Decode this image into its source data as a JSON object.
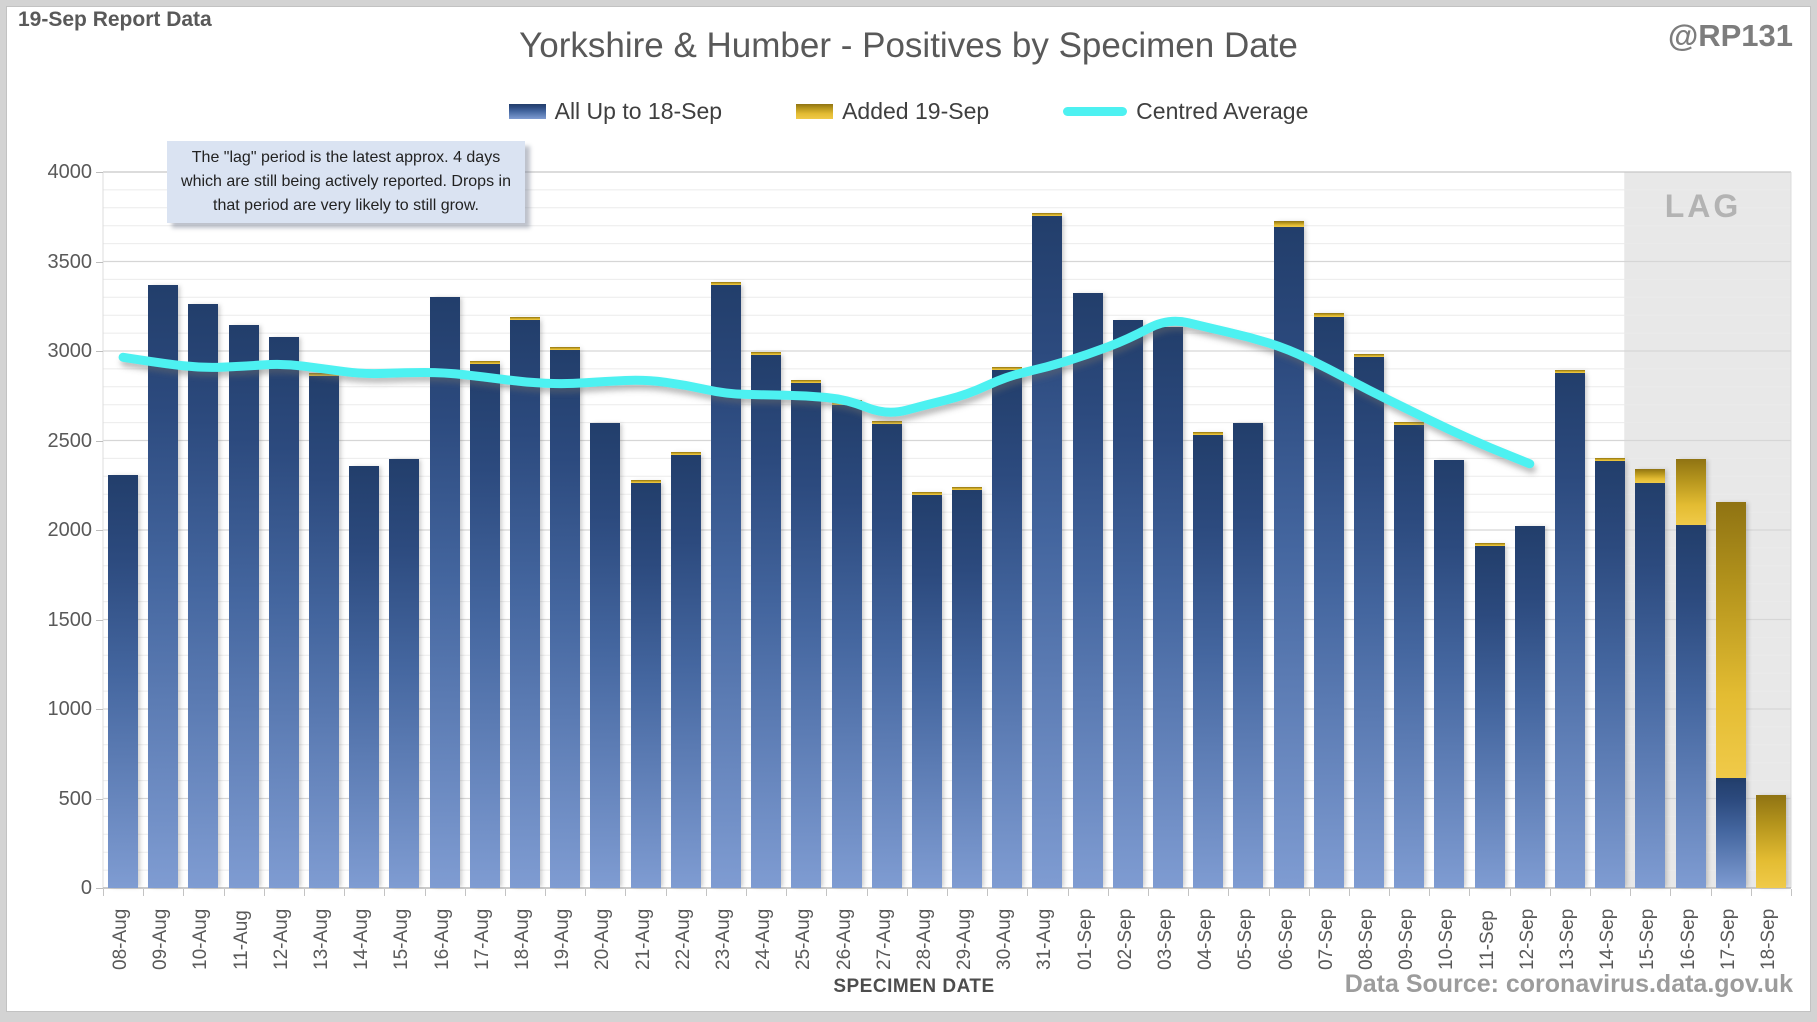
{
  "header": {
    "report_label": "19-Sep Report Data",
    "handle": "@RP131",
    "title": "Yorkshire & Humber - Positives by Specimen Date"
  },
  "legend": {
    "items": [
      {
        "label": "All Up to 18-Sep",
        "swatch": "bar-blue-gradient"
      },
      {
        "label": "Added 19-Sep",
        "swatch": "bar-gold-gradient"
      },
      {
        "label": "Centred Average",
        "swatch": "cyan-line"
      }
    ]
  },
  "annotation": {
    "text": "The \"lag\" period is the latest approx. 4 days which are still being actively reported. Drops in that period are very likely to still grow."
  },
  "lag": {
    "label": "LAG"
  },
  "axes": {
    "x_title": "SPECIMEN DATE",
    "y_ticks": [
      0,
      500,
      1000,
      1500,
      2000,
      2500,
      3000,
      3500,
      4000
    ]
  },
  "footer": {
    "source": "Data Source: coronavirus.data.gov.uk"
  },
  "chart_data": {
    "type": "bar",
    "subtype": "stacked-bars-with-line-overlay",
    "title": "Yorkshire & Humber - Positives by Specimen Date",
    "xlabel": "SPECIMEN DATE",
    "ylabel": "",
    "ylim": [
      0,
      4000
    ],
    "y_major": 500,
    "y_minor": 100,
    "grid": true,
    "legend_position": "top",
    "lag_start_category": "15-Sep",
    "lag_bg": "#e8e8e8",
    "colors": {
      "bar_blue_top": "#223e6b",
      "bar_blue_bottom": "#7f9cd2",
      "bar_gold_top": "#8f7313",
      "bar_gold_bottom": "#f0ca49",
      "line": "#4df1f1"
    },
    "categories": [
      "08-Aug",
      "09-Aug",
      "10-Aug",
      "11-Aug",
      "12-Aug",
      "13-Aug",
      "14-Aug",
      "15-Aug",
      "16-Aug",
      "17-Aug",
      "18-Aug",
      "19-Aug",
      "20-Aug",
      "21-Aug",
      "22-Aug",
      "23-Aug",
      "24-Aug",
      "25-Aug",
      "26-Aug",
      "27-Aug",
      "28-Aug",
      "29-Aug",
      "30-Aug",
      "31-Aug",
      "01-Sep",
      "02-Sep",
      "03-Sep",
      "04-Sep",
      "05-Sep",
      "06-Sep",
      "07-Sep",
      "08-Sep",
      "09-Sep",
      "10-Sep",
      "11-Sep",
      "12-Sep",
      "13-Sep",
      "14-Sep",
      "15-Sep",
      "16-Sep",
      "17-Sep",
      "18-Sep"
    ],
    "series": [
      {
        "name": "All Up to 18-Sep",
        "type": "bar",
        "stack": "positives",
        "values": [
          2310,
          3370,
          3265,
          3145,
          3080,
          2860,
          2360,
          2395,
          3300,
          2925,
          3175,
          3005,
          2600,
          2260,
          2420,
          3370,
          2975,
          2822,
          2700,
          2590,
          2195,
          2222,
          2895,
          3755,
          3325,
          3175,
          3135,
          2530,
          2600,
          3695,
          3190,
          2965,
          2588,
          2390,
          1912,
          2020,
          2878,
          2385,
          2260,
          2030,
          615,
          0
        ]
      },
      {
        "name": "Added 19-Sep",
        "type": "bar",
        "stack": "positives",
        "values": [
          0,
          0,
          0,
          0,
          0,
          15,
          0,
          0,
          0,
          15,
          15,
          15,
          0,
          15,
          13,
          18,
          14,
          15,
          25,
          17,
          13,
          14,
          15,
          15,
          0,
          0,
          0,
          15,
          0,
          30,
          23,
          18,
          13,
          0,
          15,
          0,
          15,
          19,
          80,
          365,
          1540,
          520
        ]
      },
      {
        "name": "Centred Average",
        "type": "line",
        "values": [
          2965,
          2930,
          2905,
          2915,
          2930,
          2900,
          2870,
          2880,
          2880,
          2855,
          2825,
          2815,
          2830,
          2840,
          2810,
          2760,
          2755,
          2750,
          2730,
          2640,
          2700,
          2755,
          2860,
          2910,
          2980,
          3065,
          3185,
          3130,
          3080,
          3010,
          2900,
          2780,
          2670,
          2560,
          2460,
          2370,
          null,
          null,
          null,
          null,
          null,
          null
        ]
      }
    ]
  }
}
